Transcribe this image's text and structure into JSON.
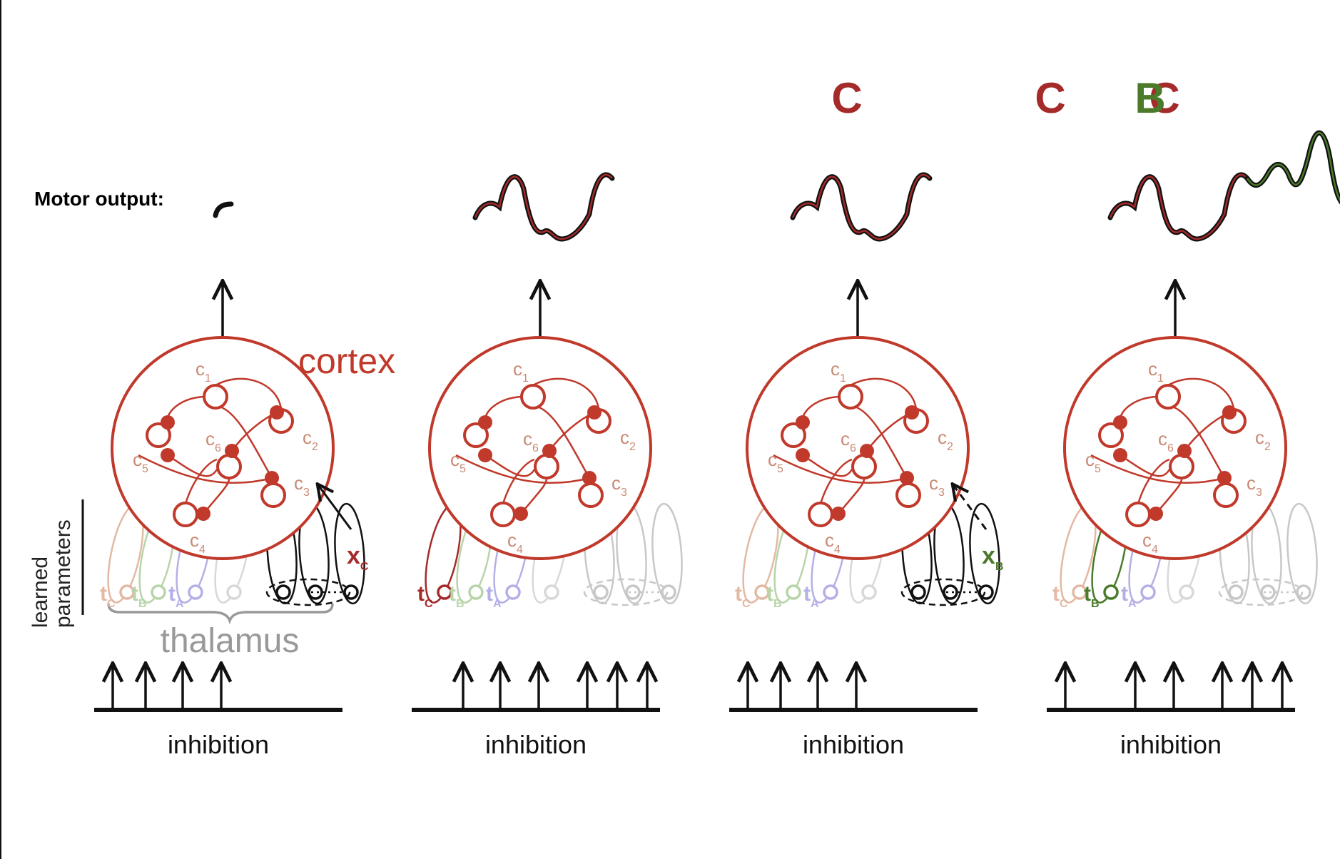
{
  "motor_output_label": "Motor output:",
  "cortex_label": "cortex",
  "thalamus_label": "thalamus",
  "learned_parameters_label": [
    "learned",
    "parameters"
  ],
  "inhibition_label": "inhibition",
  "cortex_neurons": [
    {
      "letter": "c",
      "sub": "1"
    },
    {
      "letter": "c",
      "sub": "2"
    },
    {
      "letter": "c",
      "sub": "3"
    },
    {
      "letter": "c",
      "sub": "4"
    },
    {
      "letter": "c",
      "sub": "5"
    },
    {
      "letter": "c",
      "sub": "6"
    }
  ],
  "thalamic_units": [
    {
      "letter": "t",
      "sub": "C"
    },
    {
      "letter": "t",
      "sub": "B"
    },
    {
      "letter": "t",
      "sub": "A"
    }
  ],
  "colors": {
    "cortex": "#c0392b",
    "phrase_c": "#a52a2a",
    "phrase_b": "#4a7a2a",
    "t_c_faded": "#e3b9a4",
    "t_b_faded": "#b8d4a9",
    "t_a_faded": "#b4b0e6",
    "grey_faded": "#c8c8c8",
    "thalamus_brace": "#999999"
  },
  "panels": [
    {
      "phrase_labels": [],
      "motor_trace": "tiny-onset",
      "input": {
        "letter": "x",
        "sub": "C",
        "color": "#a52a2a",
        "dashed": false
      },
      "active_thalamic": "none",
      "inhibition_arrows": [
        "t_C",
        "t_B",
        "t_A",
        "t_4"
      ],
      "shows_axis_labels": true
    },
    {
      "phrase_labels": [
        {
          "text": "C",
          "color": "#a52a2a"
        }
      ],
      "motor_trace": "phrase-C",
      "input": null,
      "active_thalamic": "t_C",
      "inhibition_arrows": [
        "t_B",
        "t_A",
        "t_4",
        "t_5",
        "t_6",
        "t_7"
      ],
      "shows_axis_labels": false
    },
    {
      "phrase_labels": [
        {
          "text": "C",
          "color": "#a52a2a"
        }
      ],
      "motor_trace": "phrase-C",
      "input": {
        "letter": "x",
        "sub": "B",
        "color": "#4a7a2a",
        "dashed": true
      },
      "active_thalamic": "none",
      "inhibition_arrows": [
        "t_C",
        "t_B",
        "t_A",
        "t_4"
      ],
      "shows_axis_labels": false
    },
    {
      "phrase_labels": [
        {
          "text": "C",
          "color": "#a52a2a"
        },
        {
          "text": "B",
          "color": "#4a7a2a"
        }
      ],
      "motor_trace": "phrase-C-then-B",
      "input": null,
      "active_thalamic": "t_B",
      "inhibition_arrows": [
        "t_C",
        "t_A",
        "t_4",
        "t_5",
        "t_6",
        "t_7"
      ],
      "shows_axis_labels": false
    }
  ]
}
